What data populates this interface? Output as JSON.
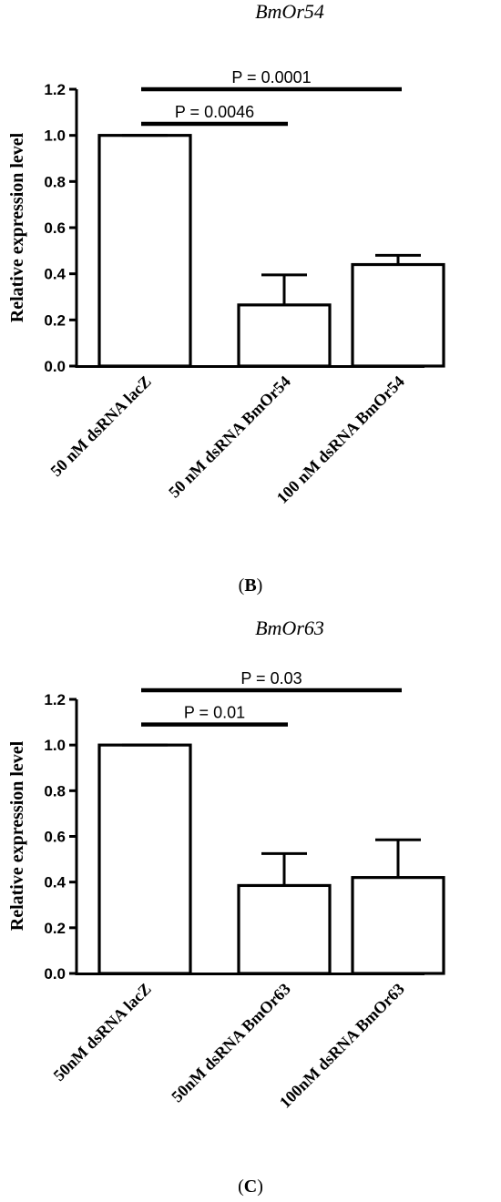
{
  "chart_data": [
    {
      "type": "bar",
      "title": "BmOr54",
      "panel_label": {
        "open": "(",
        "letter": "B",
        "close": ")"
      },
      "ylabel": "Relative expression level",
      "xlabel": "",
      "ylim": [
        0,
        1.2
      ],
      "yticks": [
        "0.0",
        "0.2",
        "0.4",
        "0.6",
        "0.8",
        "1.0",
        "1.2"
      ],
      "categories": [
        "50 nM dsRNA lacZ",
        "50 nM dsRNA BmOr54",
        "100 nM dsRNA BmOr54"
      ],
      "values": [
        1.0,
        0.265,
        0.44
      ],
      "errors": [
        0.0,
        0.13,
        0.04
      ],
      "significance": [
        {
          "from": 0,
          "to": 1,
          "y": 1.05,
          "label": "P = 0.0046"
        },
        {
          "from": 0,
          "to": 2,
          "y": 1.2,
          "label": "P = 0.0001"
        }
      ],
      "grid": false,
      "legend": "none"
    },
    {
      "type": "bar",
      "title": "BmOr63",
      "panel_label": {
        "open": "(",
        "letter": "C",
        "close": ")"
      },
      "ylabel": "Relative expression level",
      "xlabel": "",
      "ylim": [
        0,
        1.2
      ],
      "yticks": [
        "0.0",
        "0.2",
        "0.4",
        "0.6",
        "0.8",
        "1.0",
        "1.2"
      ],
      "categories": [
        "50nM dsRNA lacZ",
        "50nM dsRNA BmOr63",
        "100nM dsRNA BmOr63"
      ],
      "values": [
        1.0,
        0.385,
        0.42
      ],
      "errors": [
        0.0,
        0.14,
        0.165
      ],
      "significance": [
        {
          "from": 0,
          "to": 1,
          "y": 1.09,
          "label": "P = 0.01"
        },
        {
          "from": 0,
          "to": 2,
          "y": 1.24,
          "label": "P = 0.03"
        }
      ],
      "grid": false,
      "legend": "none"
    }
  ]
}
